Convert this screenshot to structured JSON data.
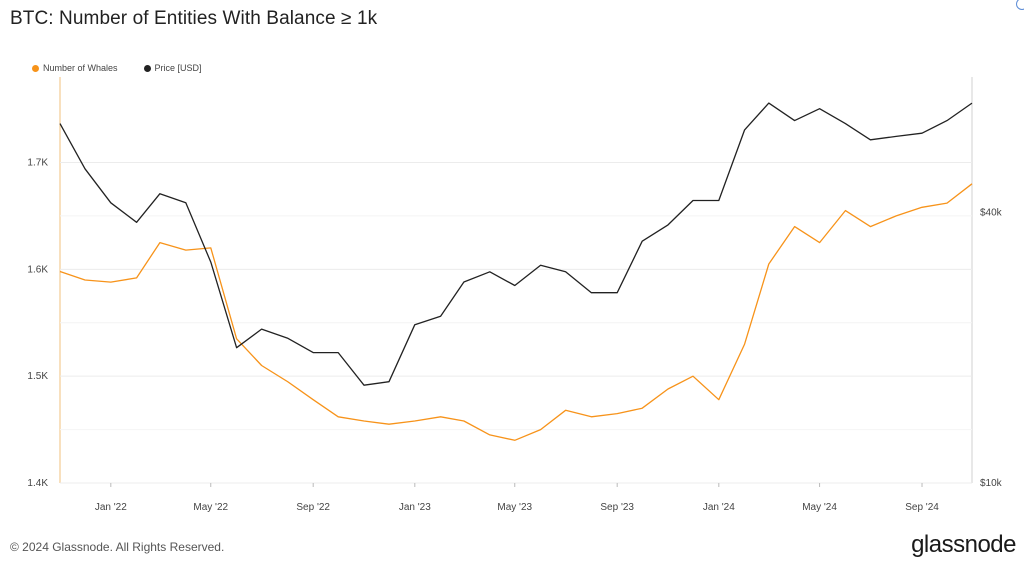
{
  "header": {
    "title": "BTC: Number of Entities With Balance ≥ 1k"
  },
  "legend": {
    "items": [
      {
        "label": "Number of Whales",
        "color": "#f7931a"
      },
      {
        "label": "Price [USD]",
        "color": "#222222"
      }
    ]
  },
  "footer": {
    "copyright": "© 2024 Glassnode. All Rights Reserved.",
    "logo": "glassnode"
  },
  "chart_data": {
    "type": "line",
    "x_ticks": [
      "Jan '22",
      "May '22",
      "Sep '22",
      "Jan '23",
      "May '23",
      "Sep '23",
      "Jan '24",
      "May '24",
      "Sep '24"
    ],
    "x_tick_dates": [
      "2022-01-01",
      "2022-05-01",
      "2022-09-01",
      "2023-01-01",
      "2023-05-01",
      "2023-09-01",
      "2024-01-01",
      "2024-05-01",
      "2024-09-01"
    ],
    "x_range": [
      "2021-11-01",
      "2024-10-31"
    ],
    "left_axis": {
      "ticks": [
        "1.4K",
        "1.5K",
        "1.6K",
        "1.7K"
      ],
      "tick_values": [
        1400,
        1500,
        1600,
        1700
      ],
      "ylim": [
        1400,
        1780
      ]
    },
    "right_axis": {
      "scale": "log",
      "ticks": [
        "$10k",
        "$40k"
      ],
      "tick_values": [
        10000,
        40000
      ],
      "ylim": [
        10000,
        80000
      ]
    },
    "grid": true,
    "series": [
      {
        "name": "Number of Whales",
        "axis": "left",
        "color": "#f7931a",
        "dates": [
          "2021-11-01",
          "2021-12-01",
          "2022-01-01",
          "2022-02-01",
          "2022-03-01",
          "2022-04-01",
          "2022-05-01",
          "2022-06-01",
          "2022-07-01",
          "2022-08-01",
          "2022-09-01",
          "2022-10-01",
          "2022-11-01",
          "2022-12-01",
          "2023-01-01",
          "2023-02-01",
          "2023-03-01",
          "2023-04-01",
          "2023-05-01",
          "2023-06-01",
          "2023-07-01",
          "2023-08-01",
          "2023-09-01",
          "2023-10-01",
          "2023-11-01",
          "2023-12-01",
          "2024-01-01",
          "2024-02-01",
          "2024-03-01",
          "2024-04-01",
          "2024-05-01",
          "2024-06-01",
          "2024-07-01",
          "2024-08-01",
          "2024-09-01",
          "2024-10-01",
          "2024-10-31"
        ],
        "values": [
          1598,
          1590,
          1588,
          1592,
          1625,
          1618,
          1620,
          1535,
          1510,
          1495,
          1478,
          1462,
          1458,
          1455,
          1458,
          1462,
          1458,
          1445,
          1440,
          1450,
          1468,
          1462,
          1465,
          1470,
          1488,
          1500,
          1478,
          1530,
          1605,
          1640,
          1625,
          1655,
          1640,
          1650,
          1658,
          1662,
          1680
        ]
      },
      {
        "name": "Price [USD]",
        "axis": "right",
        "color": "#222222",
        "dates": [
          "2021-11-01",
          "2021-12-01",
          "2022-01-01",
          "2022-02-01",
          "2022-03-01",
          "2022-04-01",
          "2022-05-01",
          "2022-06-01",
          "2022-07-01",
          "2022-08-01",
          "2022-09-01",
          "2022-10-01",
          "2022-11-01",
          "2022-12-01",
          "2023-01-01",
          "2023-02-01",
          "2023-03-01",
          "2023-04-01",
          "2023-05-01",
          "2023-06-01",
          "2023-07-01",
          "2023-08-01",
          "2023-09-01",
          "2023-10-01",
          "2023-11-01",
          "2023-12-01",
          "2024-01-01",
          "2024-02-01",
          "2024-03-01",
          "2024-04-01",
          "2024-05-01",
          "2024-06-01",
          "2024-07-01",
          "2024-08-01",
          "2024-09-01",
          "2024-10-01",
          "2024-10-31"
        ],
        "values": [
          63000,
          50000,
          42000,
          38000,
          44000,
          42000,
          31000,
          20000,
          22000,
          21000,
          19500,
          19500,
          16500,
          16800,
          22500,
          23500,
          28000,
          29500,
          27500,
          30500,
          29500,
          26500,
          26500,
          34500,
          37500,
          42500,
          42500,
          61000,
          70000,
          64000,
          68000,
          63000,
          58000,
          59000,
          60000,
          64000,
          70000
        ]
      }
    ]
  }
}
